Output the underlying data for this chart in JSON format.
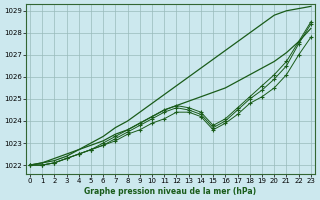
{
  "xlabel": "Graphe pression niveau de la mer (hPa)",
  "bg_color": "#cce8ee",
  "grid_color": "#99bbbb",
  "line_color": "#1a5c1a",
  "x_ticks": [
    0,
    1,
    2,
    3,
    4,
    5,
    6,
    7,
    8,
    9,
    10,
    11,
    12,
    13,
    14,
    15,
    16,
    17,
    18,
    19,
    20,
    21,
    22,
    23
  ],
  "y_ticks": [
    1022,
    1023,
    1024,
    1025,
    1026,
    1027,
    1028,
    1029
  ],
  "ylim": [
    1021.6,
    1029.3
  ],
  "xlim": [
    -0.3,
    23.3
  ],
  "series1": [
    1022.0,
    1022.0,
    1022.1,
    1022.3,
    1022.5,
    1022.7,
    1022.9,
    1023.1,
    1023.4,
    1023.6,
    1023.9,
    1024.1,
    1024.4,
    1024.4,
    1024.2,
    1023.6,
    1023.9,
    1024.3,
    1024.8,
    1025.1,
    1025.5,
    1026.1,
    1027.0,
    1027.8
  ],
  "series2": [
    1022.0,
    1022.0,
    1022.1,
    1022.3,
    1022.5,
    1022.7,
    1022.9,
    1023.2,
    1023.5,
    1023.8,
    1024.1,
    1024.4,
    1024.6,
    1024.5,
    1024.3,
    1023.7,
    1024.0,
    1024.5,
    1025.0,
    1025.4,
    1025.9,
    1026.5,
    1027.5,
    1028.4
  ],
  "series3": [
    1022.0,
    1022.0,
    1022.1,
    1022.3,
    1022.5,
    1022.7,
    1023.0,
    1023.3,
    1023.6,
    1023.9,
    1024.2,
    1024.5,
    1024.7,
    1024.6,
    1024.4,
    1023.8,
    1024.1,
    1024.6,
    1025.1,
    1025.6,
    1026.1,
    1026.7,
    1027.6,
    1028.5
  ],
  "smooth_line": [
    1022.0,
    1022.1,
    1022.3,
    1022.5,
    1022.7,
    1022.9,
    1023.1,
    1023.4,
    1023.6,
    1023.9,
    1024.2,
    1024.5,
    1024.7,
    1024.9,
    1025.1,
    1025.3,
    1025.5,
    1025.8,
    1026.1,
    1026.4,
    1026.7,
    1027.1,
    1027.6,
    1028.2
  ],
  "top_smooth_line": [
    1022.0,
    1022.1,
    1022.2,
    1022.4,
    1022.7,
    1023.0,
    1023.3,
    1023.7,
    1024.0,
    1024.4,
    1024.8,
    1025.2,
    1025.6,
    1026.0,
    1026.4,
    1026.8,
    1027.2,
    1027.6,
    1028.0,
    1028.4,
    1028.8,
    1029.0,
    1029.1,
    1029.2
  ]
}
